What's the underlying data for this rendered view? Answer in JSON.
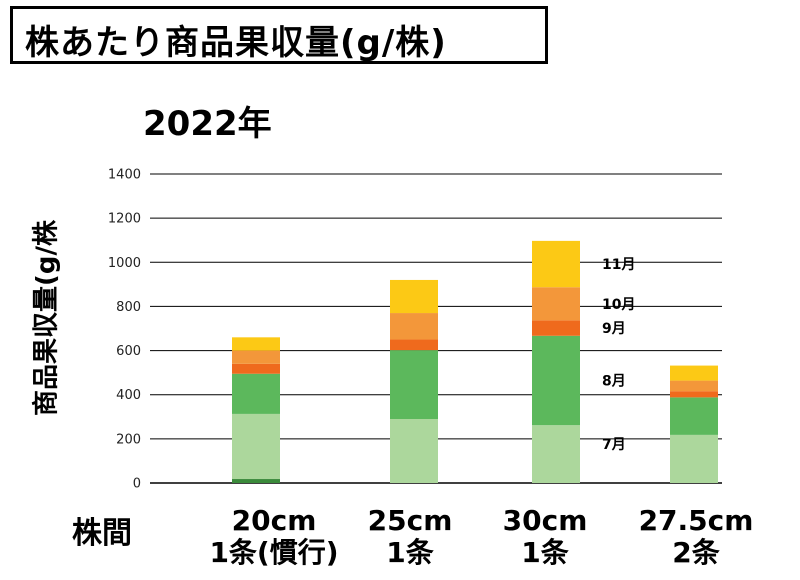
{
  "header": {
    "title": "株あたり商品果収量(g/株)"
  },
  "chart_data": {
    "type": "bar",
    "stacked": true,
    "title": "2022年",
    "ylabel": "商品果収量(g/株",
    "xlabel": "株間",
    "ylim": [
      0,
      1400
    ],
    "yticks": [
      0,
      200,
      400,
      600,
      800,
      1000,
      1200,
      1400
    ],
    "grid": true,
    "categories": [
      {
        "line1": "20cm",
        "line2": "1条(慣行)"
      },
      {
        "line1": "25cm",
        "line2": "1条"
      },
      {
        "line1": "30cm",
        "line2": "1条"
      },
      {
        "line1": "27.5cm",
        "line2": "2条"
      }
    ],
    "series": [
      {
        "key": "m6",
        "name": "",
        "color": "#3a8a3a",
        "values": [
          18,
          0,
          0,
          0
        ]
      },
      {
        "key": "m7",
        "name": "7月",
        "color": "#acd79c",
        "values": [
          295,
          290,
          262,
          218
        ]
      },
      {
        "key": "m8",
        "name": "8月",
        "color": "#5cb85c",
        "values": [
          182,
          312,
          405,
          170
        ]
      },
      {
        "key": "m9",
        "name": "9月",
        "color": "#ef6a1d",
        "values": [
          45,
          48,
          70,
          28
        ]
      },
      {
        "key": "m10",
        "name": "10月",
        "color": "#f3973a",
        "values": [
          60,
          120,
          150,
          48
        ]
      },
      {
        "key": "m11",
        "name": "11月",
        "color": "#fcc915",
        "values": [
          60,
          150,
          210,
          68
        ]
      }
    ],
    "legend_labels": [
      {
        "text": "11月"
      },
      {
        "text": "10月"
      },
      {
        "text": "9月"
      },
      {
        "text": "8月"
      },
      {
        "text": "7月"
      }
    ]
  }
}
